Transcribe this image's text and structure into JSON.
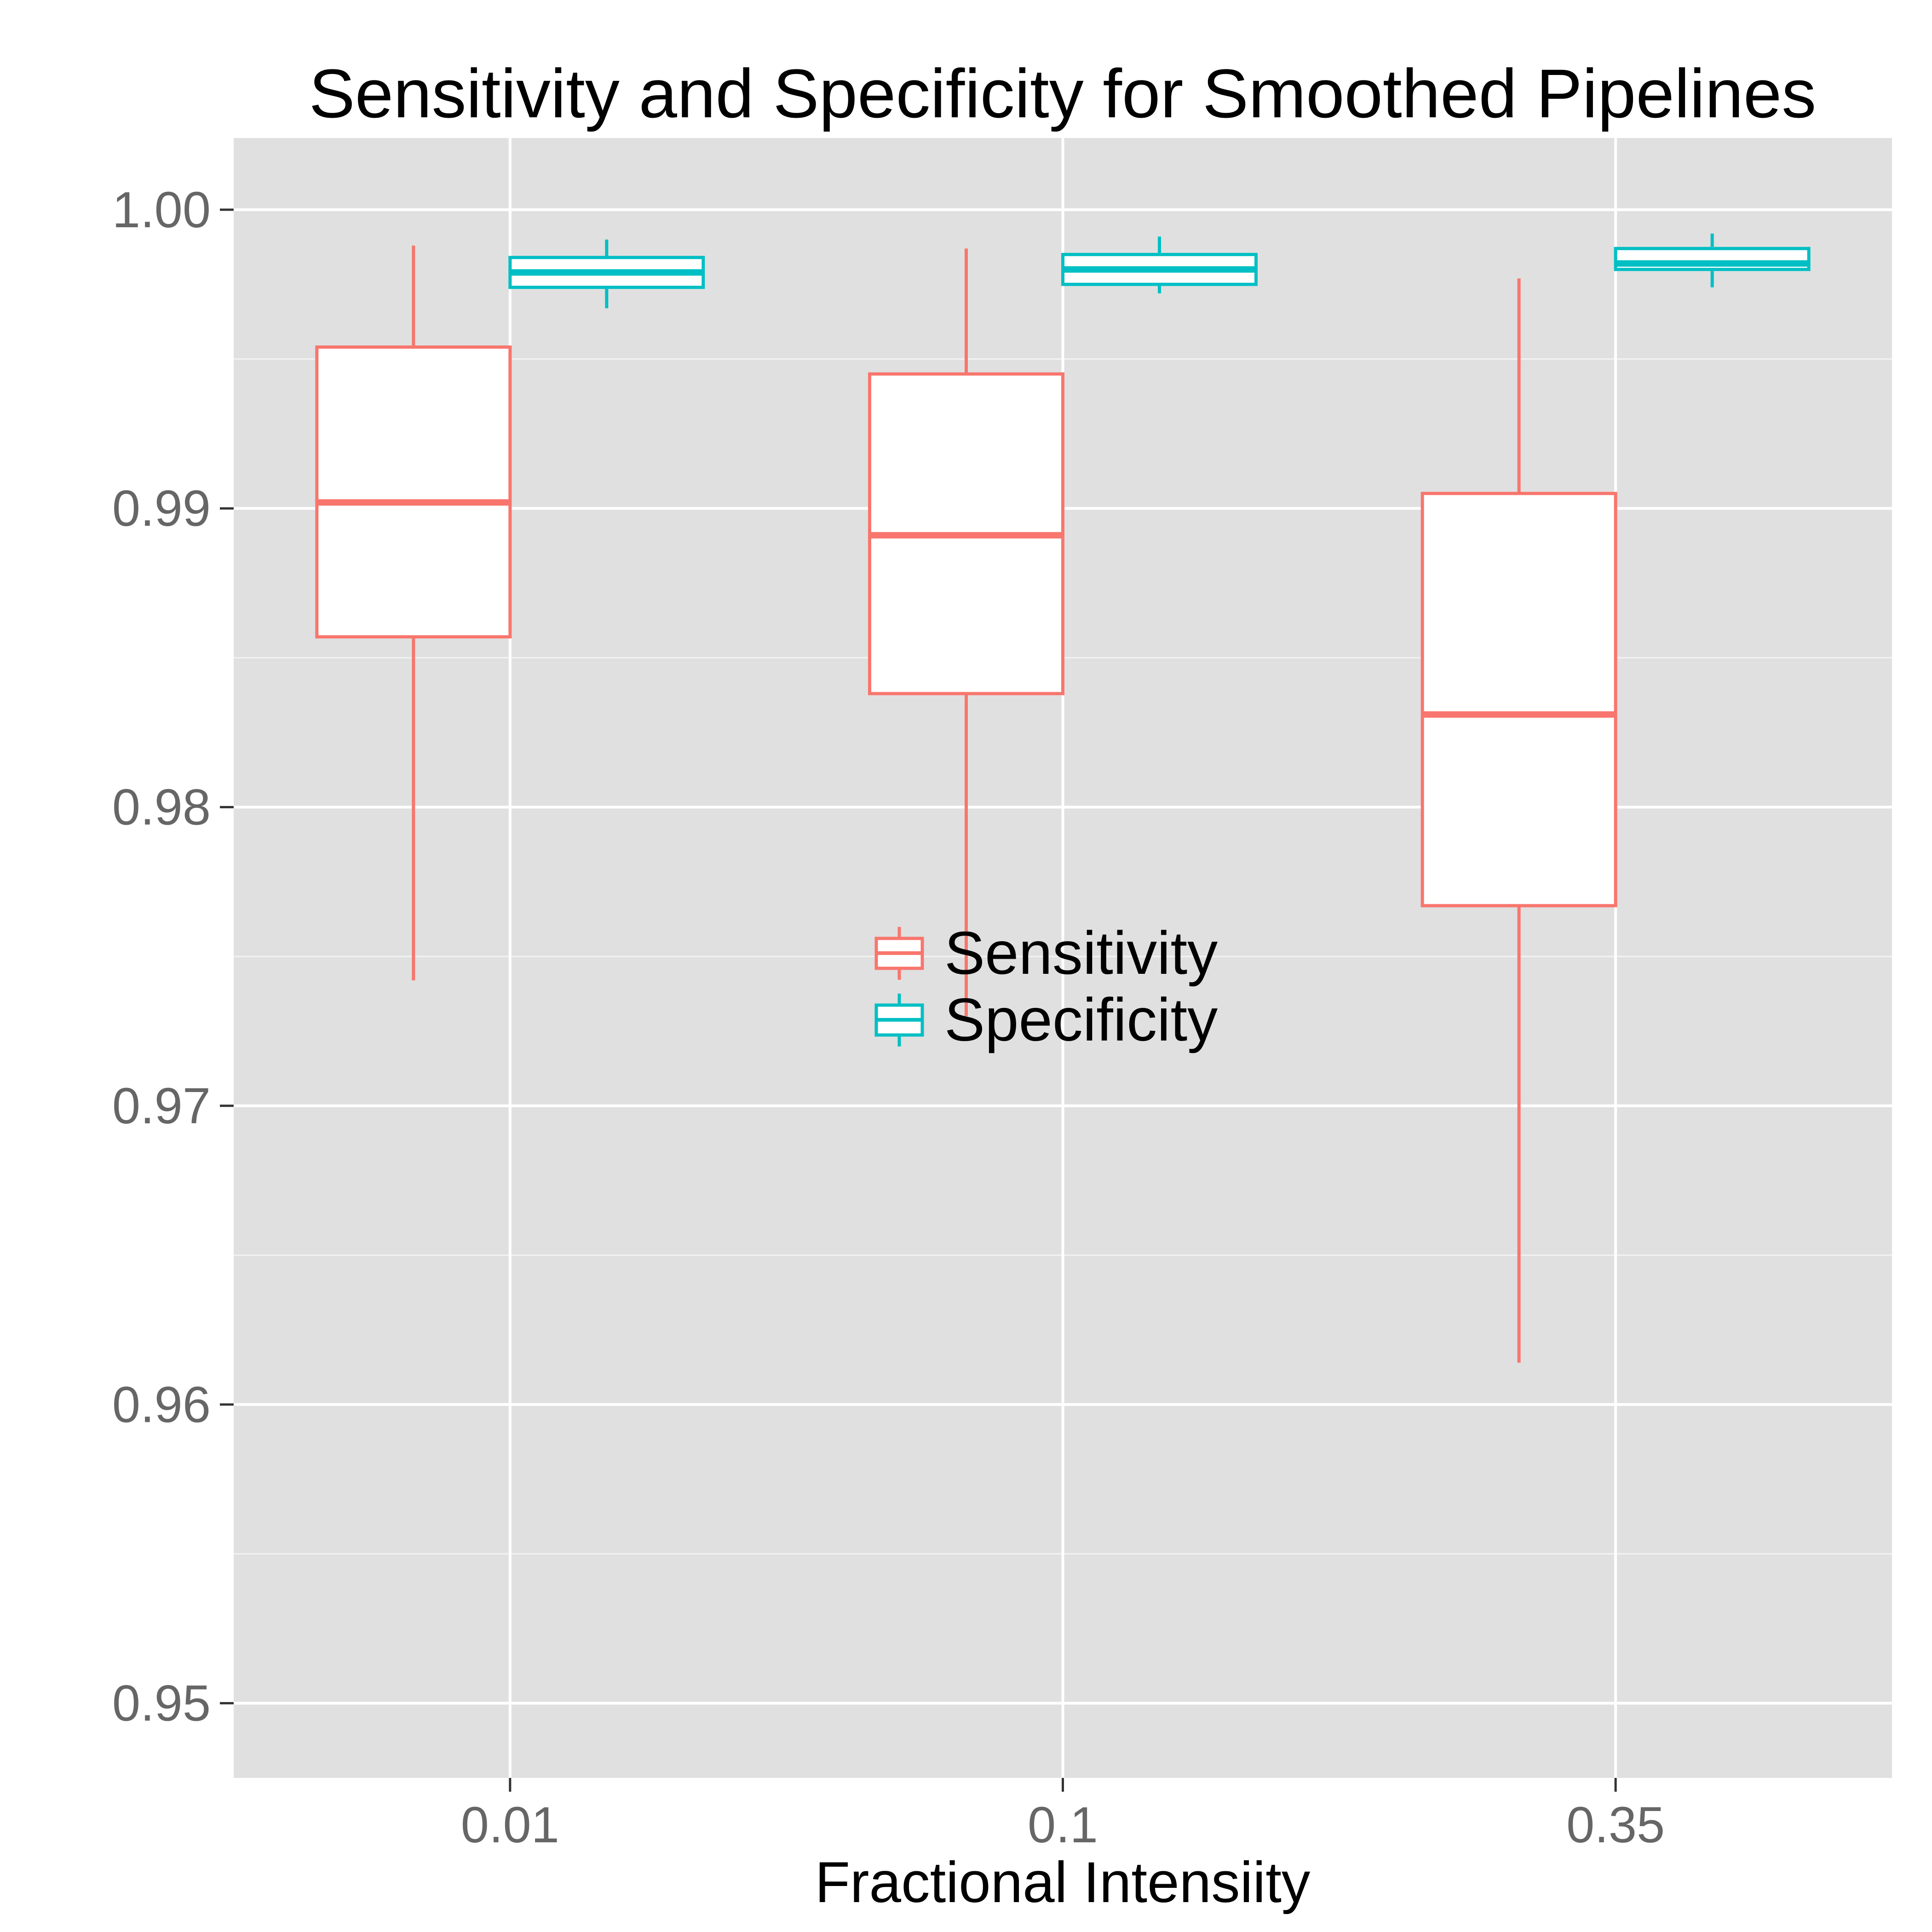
{
  "chart_data": {
    "type": "boxplot",
    "title": "Sensitivity and Specificity for Smoothed Pipelines",
    "xlabel": "Fractional Intensiity",
    "ylabel": "",
    "categories": [
      "0.01",
      "0.1",
      "0.35"
    ],
    "ylim": [
      0.9475,
      1.0024
    ],
    "yticks": [
      0.95,
      0.96,
      0.97,
      0.98,
      0.99,
      1.0
    ],
    "ytick_labels": [
      "0.95",
      "0.96",
      "0.97",
      "0.98",
      "0.99",
      "1.00"
    ],
    "grid": true,
    "legend_position": "center",
    "series": [
      {
        "name": "Sensitivity",
        "color": "#F8766D",
        "boxes": [
          {
            "min": 0.9742,
            "q1": 0.9857,
            "median": 0.9902,
            "q3": 0.9954,
            "max": 0.9988
          },
          {
            "min": 0.973,
            "q1": 0.9838,
            "median": 0.9891,
            "q3": 0.9945,
            "max": 0.9987
          },
          {
            "min": 0.9614,
            "q1": 0.9767,
            "median": 0.9831,
            "q3": 0.9905,
            "max": 0.9977
          }
        ]
      },
      {
        "name": "Specificity",
        "color": "#00BFC4",
        "boxes": [
          {
            "min": 0.9967,
            "q1": 0.9974,
            "median": 0.9979,
            "q3": 0.9984,
            "max": 0.999
          },
          {
            "min": 0.9972,
            "q1": 0.9975,
            "median": 0.998,
            "q3": 0.9985,
            "max": 0.9991
          },
          {
            "min": 0.9974,
            "q1": 0.998,
            "median": 0.9982,
            "q3": 0.9987,
            "max": 0.9992
          }
        ]
      }
    ]
  }
}
